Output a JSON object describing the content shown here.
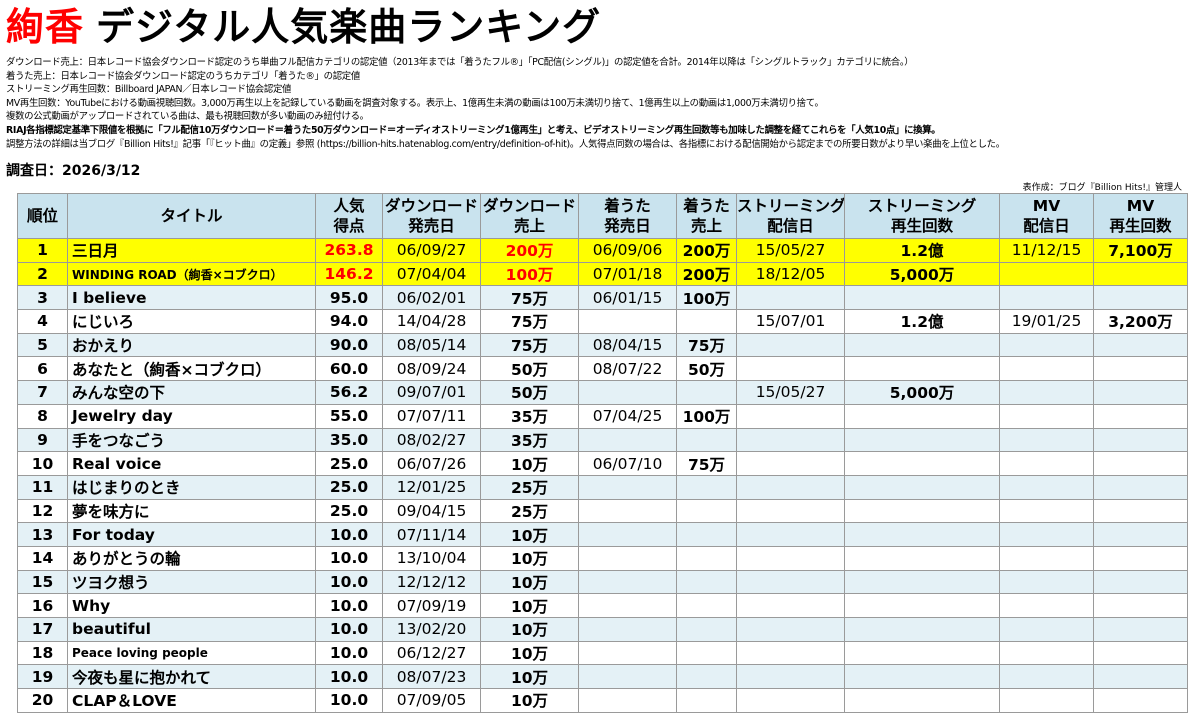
{
  "header": {
    "artist": "絢香",
    "title_rest": "デジタル人気楽曲ランキング"
  },
  "notes": [
    "ダウンロード売上：日本レコード協会ダウンロード認定のうち単曲フル配信カテゴリの認定値（2013年までは「着うたフル®」「PC配信(シングル)」の認定値を合計。2014年以降は「シングルトラック」カテゴリに統合。）",
    "着うた売上：日本レコード協会ダウンロード認定のうちカテゴリ「着うた®」の認定値",
    "ストリーミング再生回数：Billboard JAPAN／日本レコード協会認定値",
    "MV再生回数：YouTubeにおける動画視聴回数。3,000万再生以上を記録している動画を調査対象する。表示上、1億再生未満の動画は100万未満切り捨て、1億再生以上の動画は1,000万未満切り捨て。",
    "複数の公式動画がアップロードされている曲は、最も視聴回数が多い動画のみ紐付ける。",
    "RIAJ各指標認定基準下限値を根拠に「フル配信10万ダウンロード＝着うた50万ダウンロード＝オーディオストリーミング1億再生」と考え、ビデオストリーミング再生回数等も加味した調整を経てこれらを「人気10点」に換算。",
    "調整方法の詳細は当ブログ『Billion Hits!』記事「『ヒット曲』の定義」参照 (https://billion-hits.hatenablog.com/entry/definition-of-hit)。人気得点同数の場合は、各指標における配信開始から認定までの所要日数がより早い楽曲を上位とした。"
  ],
  "survey_date": "調査日：2026/3/12",
  "credit": "表作成：ブログ『Billion Hits!』管理人",
  "table": {
    "headers": {
      "rank": "順位",
      "title": "タイトル",
      "score_1": "人気",
      "score_2": "得点",
      "dl_date_1": "ダウンロード",
      "dl_date_2": "発売日",
      "dl_sales_1": "ダウンロード",
      "dl_sales_2": "売上",
      "chaku_date_1": "着うた",
      "chaku_date_2": "発売日",
      "chaku_sales_1": "着うた",
      "chaku_sales_2": "売上",
      "st_date_1": "ストリーミング",
      "st_date_2": "配信日",
      "st_count_1": "ストリーミング",
      "st_count_2": "再生回数",
      "mv_date_1": "MV",
      "mv_date_2": "配信日",
      "mv_count_1": "MV",
      "mv_count_2": "再生回数"
    },
    "rows": [
      {
        "rank": "1",
        "title": "三日月",
        "score": "263.8",
        "dl_date": "06/09/27",
        "dl_sales": "200万",
        "chaku_date": "06/09/06",
        "chaku_sales": "200万",
        "st_date": "15/05/27",
        "st_count": "1.2億",
        "mv_date": "11/12/15",
        "mv_count": "7,100万"
      },
      {
        "rank": "2",
        "title": "WINDING ROAD（絢香×コブクロ）",
        "score": "146.2",
        "dl_date": "07/04/04",
        "dl_sales": "100万",
        "chaku_date": "07/01/18",
        "chaku_sales": "200万",
        "st_date": "18/12/05",
        "st_count": "5,000万",
        "mv_date": "",
        "mv_count": ""
      },
      {
        "rank": "3",
        "title": "I believe",
        "score": "95.0",
        "dl_date": "06/02/01",
        "dl_sales": "75万",
        "chaku_date": "06/01/15",
        "chaku_sales": "100万",
        "st_date": "",
        "st_count": "",
        "mv_date": "",
        "mv_count": ""
      },
      {
        "rank": "4",
        "title": "にじいろ",
        "score": "94.0",
        "dl_date": "14/04/28",
        "dl_sales": "75万",
        "chaku_date": "",
        "chaku_sales": "",
        "st_date": "15/07/01",
        "st_count": "1.2億",
        "mv_date": "19/01/25",
        "mv_count": "3,200万"
      },
      {
        "rank": "5",
        "title": "おかえり",
        "score": "90.0",
        "dl_date": "08/05/14",
        "dl_sales": "75万",
        "chaku_date": "08/04/15",
        "chaku_sales": "75万",
        "st_date": "",
        "st_count": "",
        "mv_date": "",
        "mv_count": ""
      },
      {
        "rank": "6",
        "title": "あなたと（絢香×コブクロ）",
        "score": "60.0",
        "dl_date": "08/09/24",
        "dl_sales": "50万",
        "chaku_date": "08/07/22",
        "chaku_sales": "50万",
        "st_date": "",
        "st_count": "",
        "mv_date": "",
        "mv_count": ""
      },
      {
        "rank": "7",
        "title": "みんな空の下",
        "score": "56.2",
        "dl_date": "09/07/01",
        "dl_sales": "50万",
        "chaku_date": "",
        "chaku_sales": "",
        "st_date": "15/05/27",
        "st_count": "5,000万",
        "mv_date": "",
        "mv_count": ""
      },
      {
        "rank": "8",
        "title": "Jewelry day",
        "score": "55.0",
        "dl_date": "07/07/11",
        "dl_sales": "35万",
        "chaku_date": "07/04/25",
        "chaku_sales": "100万",
        "st_date": "",
        "st_count": "",
        "mv_date": "",
        "mv_count": ""
      },
      {
        "rank": "9",
        "title": "手をつなごう",
        "score": "35.0",
        "dl_date": "08/02/27",
        "dl_sales": "35万",
        "chaku_date": "",
        "chaku_sales": "",
        "st_date": "",
        "st_count": "",
        "mv_date": "",
        "mv_count": ""
      },
      {
        "rank": "10",
        "title": "Real voice",
        "score": "25.0",
        "dl_date": "06/07/26",
        "dl_sales": "10万",
        "chaku_date": "06/07/10",
        "chaku_sales": "75万",
        "st_date": "",
        "st_count": "",
        "mv_date": "",
        "mv_count": ""
      },
      {
        "rank": "11",
        "title": "はじまりのとき",
        "score": "25.0",
        "dl_date": "12/01/25",
        "dl_sales": "25万",
        "chaku_date": "",
        "chaku_sales": "",
        "st_date": "",
        "st_count": "",
        "mv_date": "",
        "mv_count": ""
      },
      {
        "rank": "12",
        "title": "夢を味方に",
        "score": "25.0",
        "dl_date": "09/04/15",
        "dl_sales": "25万",
        "chaku_date": "",
        "chaku_sales": "",
        "st_date": "",
        "st_count": "",
        "mv_date": "",
        "mv_count": ""
      },
      {
        "rank": "13",
        "title": "For today",
        "score": "10.0",
        "dl_date": "07/11/14",
        "dl_sales": "10万",
        "chaku_date": "",
        "chaku_sales": "",
        "st_date": "",
        "st_count": "",
        "mv_date": "",
        "mv_count": ""
      },
      {
        "rank": "14",
        "title": "ありがとうの輪",
        "score": "10.0",
        "dl_date": "13/10/04",
        "dl_sales": "10万",
        "chaku_date": "",
        "chaku_sales": "",
        "st_date": "",
        "st_count": "",
        "mv_date": "",
        "mv_count": ""
      },
      {
        "rank": "15",
        "title": "ツヨク想う",
        "score": "10.0",
        "dl_date": "12/12/12",
        "dl_sales": "10万",
        "chaku_date": "",
        "chaku_sales": "",
        "st_date": "",
        "st_count": "",
        "mv_date": "",
        "mv_count": ""
      },
      {
        "rank": "16",
        "title": "Why",
        "score": "10.0",
        "dl_date": "07/09/19",
        "dl_sales": "10万",
        "chaku_date": "",
        "chaku_sales": "",
        "st_date": "",
        "st_count": "",
        "mv_date": "",
        "mv_count": ""
      },
      {
        "rank": "17",
        "title": "beautiful",
        "score": "10.0",
        "dl_date": "13/02/20",
        "dl_sales": "10万",
        "chaku_date": "",
        "chaku_sales": "",
        "st_date": "",
        "st_count": "",
        "mv_date": "",
        "mv_count": ""
      },
      {
        "rank": "18",
        "title": "Peace loving people",
        "score": "10.0",
        "dl_date": "06/12/27",
        "dl_sales": "10万",
        "chaku_date": "",
        "chaku_sales": "",
        "st_date": "",
        "st_count": "",
        "mv_date": "",
        "mv_count": ""
      },
      {
        "rank": "19",
        "title": "今夜も星に抱かれて",
        "score": "10.0",
        "dl_date": "08/07/23",
        "dl_sales": "10万",
        "chaku_date": "",
        "chaku_sales": "",
        "st_date": "",
        "st_count": "",
        "mv_date": "",
        "mv_count": ""
      },
      {
        "rank": "20",
        "title": "CLAP＆LOVE",
        "score": "10.0",
        "dl_date": "07/09/05",
        "dl_sales": "10万",
        "chaku_date": "",
        "chaku_sales": "",
        "st_date": "",
        "st_count": "",
        "mv_date": "",
        "mv_count": ""
      }
    ]
  },
  "colors": {
    "artist_red": "#ff0000",
    "header_blue": "#c9e3ee",
    "row_blue": "#e4f1f6",
    "highlight_yellow": "#ffff00",
    "red_value": "#ff0000"
  }
}
